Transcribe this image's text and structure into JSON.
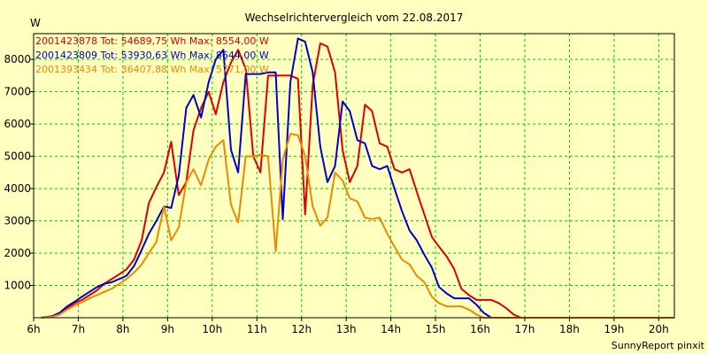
{
  "chart_data": {
    "type": "line",
    "title": "Wechselrichtervergleich vom 22.08.2017",
    "y_unit": "W",
    "footer": "SunnyReport pinxit",
    "ylim": [
      0,
      8800
    ],
    "xlim": [
      6,
      20.35
    ],
    "y_ticks": [
      1000,
      2000,
      3000,
      4000,
      5000,
      6000,
      7000,
      8000
    ],
    "y_tick_labels": [
      "1000",
      "2000",
      "3000",
      "4000",
      "5000",
      "6000",
      "7000",
      "8000"
    ],
    "x_ticks": [
      6,
      7,
      8,
      9,
      10,
      11,
      12,
      13,
      14,
      15,
      16,
      17,
      18,
      19,
      20
    ],
    "x_tick_labels": [
      "6h",
      "7h",
      "8h",
      "9h",
      "10h",
      "11h",
      "12h",
      "13h",
      "14h",
      "15h",
      "16h",
      "17h",
      "18h",
      "19h",
      "20h"
    ],
    "grid": true,
    "legend_position": "top-left",
    "x": [
      6.17,
      6.42,
      6.58,
      6.75,
      6.92,
      7.08,
      7.25,
      7.42,
      7.58,
      7.75,
      7.92,
      8.08,
      8.25,
      8.42,
      8.58,
      8.75,
      8.92,
      9.08,
      9.25,
      9.42,
      9.58,
      9.75,
      9.92,
      10.08,
      10.25,
      10.42,
      10.58,
      10.75,
      10.92,
      11.08,
      11.25,
      11.42,
      11.58,
      11.75,
      11.92,
      12.08,
      12.25,
      12.42,
      12.58,
      12.75,
      12.92,
      13.08,
      13.25,
      13.42,
      13.58,
      13.75,
      13.92,
      14.08,
      14.25,
      14.42,
      14.58,
      14.75,
      14.92,
      15.08,
      15.25,
      15.42,
      15.58,
      15.75,
      15.92,
      16.08,
      16.25,
      16.42,
      16.58,
      16.75,
      16.92,
      17.08,
      17.25,
      17.42,
      17.58,
      17.75,
      17.92,
      18.08,
      18.25,
      18.42,
      18.58,
      18.75,
      18.92,
      19.08,
      19.25,
      19.42,
      19.58,
      19.75,
      19.92,
      20.08,
      20.25,
      20.35
    ],
    "series": [
      {
        "name": "2001423878",
        "legend_text": "2001423878 Tot: 54689,75 Wh Max: 8554,00 W",
        "color": "#dd0000",
        "values": [
          0,
          50,
          150,
          300,
          450,
          550,
          700,
          850,
          1050,
          1200,
          1350,
          1500,
          1800,
          2400,
          3550,
          4050,
          4500,
          5450,
          3800,
          4200,
          5800,
          6500,
          7000,
          6300,
          7300,
          7900,
          8300,
          7700,
          5000,
          4500,
          7500,
          7500,
          7500,
          7500,
          7400,
          3200,
          7200,
          8500,
          8400,
          7600,
          5200,
          4200,
          4700,
          6600,
          6400,
          5400,
          5300,
          4600,
          4500,
          4600,
          3900,
          3200,
          2500,
          2200,
          1900,
          1500,
          900,
          700,
          550,
          550,
          550,
          450,
          300,
          100,
          0,
          0,
          0,
          0,
          0,
          0,
          0,
          0,
          0,
          0,
          0,
          0,
          0,
          0,
          0,
          0,
          0,
          0,
          0,
          0,
          0,
          0
        ]
      },
      {
        "name": "2001423809",
        "legend_text": "2001423809 Tot: 53930,63 Wh Max: 8644,00 W",
        "color": "#0000cc",
        "values": [
          0,
          50,
          150,
          350,
          500,
          650,
          800,
          950,
          1050,
          1100,
          1200,
          1300,
          1600,
          2100,
          2600,
          3000,
          3450,
          3400,
          4400,
          6500,
          6900,
          6200,
          7300,
          8000,
          8300,
          5200,
          4500,
          7550,
          7550,
          7550,
          7600,
          7600,
          3050,
          7300,
          8650,
          8550,
          7600,
          5300,
          4200,
          4700,
          6700,
          6400,
          5500,
          5400,
          4700,
          4600,
          4700,
          4000,
          3300,
          2700,
          2400,
          1950,
          1550,
          950,
          750,
          600,
          600,
          600,
          400,
          150,
          0,
          0,
          0,
          0,
          0,
          0,
          0,
          0,
          0,
          0,
          0,
          0,
          0,
          0,
          0,
          0,
          0,
          0,
          0,
          0,
          0,
          0,
          0,
          0,
          0,
          0
        ]
      },
      {
        "name": "2001393434",
        "legend_text": "2001393434 Tot: 36407,88 Wh Max: 5771,00 W",
        "color": "#ee8800",
        "values": [
          0,
          30,
          100,
          250,
          380,
          480,
          600,
          700,
          800,
          900,
          1050,
          1200,
          1400,
          1650,
          2000,
          2350,
          3450,
          2400,
          2800,
          4200,
          4600,
          4100,
          4900,
          5300,
          5500,
          3500,
          2950,
          5000,
          5000,
          5050,
          5000,
          2050,
          4900,
          5700,
          5650,
          5000,
          3450,
          2850,
          3100,
          4500,
          4250,
          3700,
          3600,
          3100,
          3050,
          3100,
          2600,
          2200,
          1800,
          1650,
          1300,
          1100,
          650,
          450,
          350,
          350,
          350,
          250,
          100,
          0,
          0,
          0,
          0,
          0,
          0,
          0,
          0,
          0,
          0,
          0,
          0,
          0,
          0,
          0,
          0,
          0,
          0,
          0,
          0,
          0,
          0,
          0,
          0,
          0,
          0,
          0
        ]
      }
    ]
  }
}
